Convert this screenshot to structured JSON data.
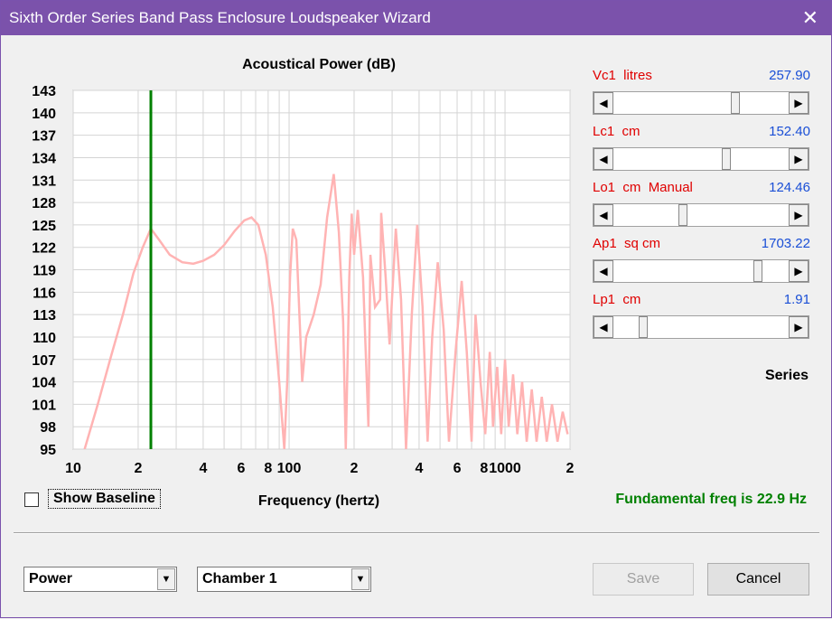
{
  "window": {
    "title": "Sixth Order Series Band Pass Enclosure Loudspeaker Wizard"
  },
  "chart_data": {
    "type": "line",
    "title": "Acoustical Power (dB)",
    "x_label": "Frequency (hertz)",
    "x_log": true,
    "grid": true,
    "xlim": [
      10,
      2000
    ],
    "ylim": [
      95,
      143
    ],
    "xticks": [
      10,
      {
        "value": 20,
        "label": "2"
      },
      {
        "value": 40,
        "label": "4"
      },
      {
        "value": 60,
        "label": "6"
      },
      {
        "value": 80,
        "label": "8"
      },
      100,
      {
        "value": 200,
        "label": "2"
      },
      {
        "value": 400,
        "label": "4"
      },
      {
        "value": 600,
        "label": "6"
      },
      {
        "value": 800,
        "label": "8"
      },
      1000,
      {
        "value": 2000,
        "label": "2"
      }
    ],
    "yticks": [
      95,
      98,
      101,
      104,
      107,
      110,
      113,
      116,
      119,
      122,
      125,
      128,
      131,
      134,
      137,
      140,
      143
    ],
    "series": [
      {
        "color": "#ffb3b3",
        "x": [
          11.3,
          13,
          15,
          17,
          19,
          21,
          22.9,
          25,
          28,
          32,
          36,
          40,
          45,
          50,
          56,
          62,
          67,
          72,
          78,
          84,
          90,
          95,
          98,
          101,
          104,
          108,
          112,
          115,
          120,
          130,
          140,
          150,
          161,
          170,
          178,
          183,
          190,
          195,
          200,
          208,
          220,
          233,
          238,
          250,
          264,
          267,
          280,
          292,
          312,
          330,
          348,
          370,
          392,
          415,
          438,
          460,
          488,
          520,
          550,
          590,
          630,
          665,
          700,
          730,
          770,
          810,
          850,
          880,
          920,
          960,
          1000,
          1040,
          1090,
          1140,
          1200,
          1260,
          1330,
          1400,
          1480,
          1560,
          1650,
          1750,
          1850,
          1950
        ],
        "values": [
          95,
          101,
          107.5,
          113,
          118.5,
          122,
          124.5,
          123,
          121,
          120,
          119.8,
          120.2,
          121,
          122.3,
          124.2,
          125.6,
          126,
          125,
          121,
          114,
          104,
          95,
          104,
          118,
          124.5,
          123,
          112,
          104,
          110,
          113,
          117,
          126,
          131.8,
          124,
          112,
          95,
          118,
          126.5,
          121,
          127,
          118,
          98,
          121,
          114,
          115,
          126.6,
          118,
          109,
          124.5,
          115,
          95,
          113,
          125,
          114,
          96,
          110,
          120,
          111,
          96,
          108,
          117.5,
          108,
          96,
          113,
          104,
          97,
          108,
          98,
          106,
          97,
          107,
          98,
          105,
          97,
          104,
          96,
          103,
          96,
          102,
          96,
          101,
          96,
          100,
          97
        ]
      }
    ],
    "marker": {
      "x": 22.9,
      "color": "#008000"
    }
  },
  "parameters": [
    {
      "label": "Vc1  litres",
      "value": "257.90"
    },
    {
      "label": "Lc1  cm",
      "value": "152.40"
    },
    {
      "label": "Lo1  cm  Manual",
      "value": "124.46"
    },
    {
      "label": "Ap1  sq cm",
      "value": "1703.22"
    },
    {
      "label": "Lp1  cm",
      "value": "1.91"
    }
  ],
  "mode": "Series",
  "show_baseline": "Show Baseline",
  "status": "Fundamental freq is 22.9 Hz",
  "dropdowns": [
    "Power",
    "Chamber 1"
  ],
  "buttons": [
    "Save",
    "Cancel"
  ]
}
